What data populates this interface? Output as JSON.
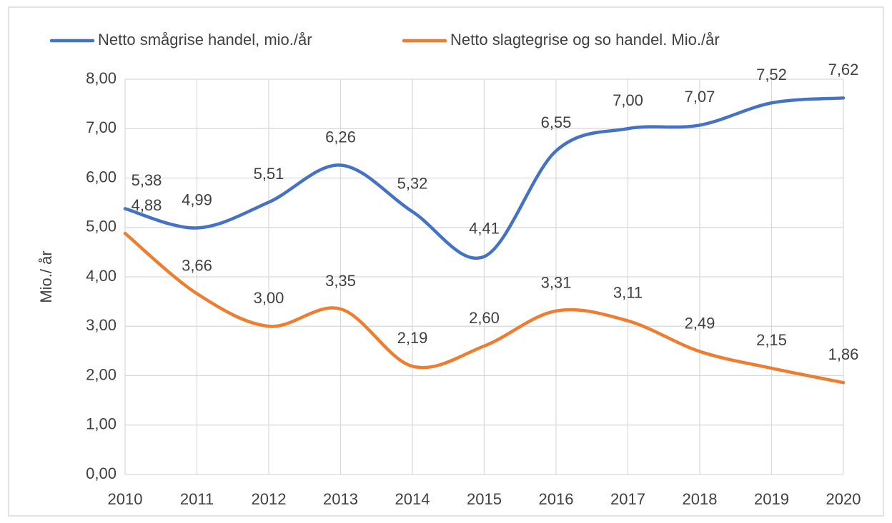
{
  "chart_data": {
    "type": "line",
    "y_label": "Mio./ år",
    "categories": [
      "2010",
      "2011",
      "2012",
      "2013",
      "2014",
      "2015",
      "2016",
      "2017",
      "2018",
      "2019",
      "2020"
    ],
    "series": [
      {
        "name": "Netto smågrise handel, mio./år",
        "color": "#4472c4",
        "values": [
          5.38,
          4.99,
          5.51,
          6.26,
          5.32,
          4.41,
          6.55,
          7.0,
          7.07,
          7.52,
          7.62
        ],
        "value_labels": [
          "5,38",
          "4,99",
          "5,51",
          "6,26",
          "5,32",
          "4,41",
          "6,55",
          "7,00",
          "7,07",
          "7,52",
          "7,62"
        ]
      },
      {
        "name": "Netto slagtegrise og so handel. Mio./år",
        "color": "#ed7d31",
        "values": [
          4.88,
          3.66,
          3.0,
          3.35,
          2.19,
          2.6,
          3.31,
          3.11,
          2.49,
          2.15,
          1.86
        ],
        "value_labels": [
          "4,88",
          "3,66",
          "3,00",
          "3,35",
          "2,19",
          "2,60",
          "3,31",
          "3,11",
          "2,49",
          "2,15",
          "1,86"
        ]
      }
    ],
    "ylim": [
      0,
      8
    ],
    "yticks": [
      {
        "value": 0,
        "label": "0,00"
      },
      {
        "value": 1,
        "label": "1,00"
      },
      {
        "value": 2,
        "label": "2,00"
      },
      {
        "value": 3,
        "label": "3,00"
      },
      {
        "value": 4,
        "label": "4,00"
      },
      {
        "value": 5,
        "label": "5,00"
      },
      {
        "value": 6,
        "label": "6,00"
      },
      {
        "value": 7,
        "label": "7,00"
      },
      {
        "value": 8,
        "label": "8,00"
      }
    ],
    "grid": true,
    "smooth": true,
    "legend": "top"
  }
}
